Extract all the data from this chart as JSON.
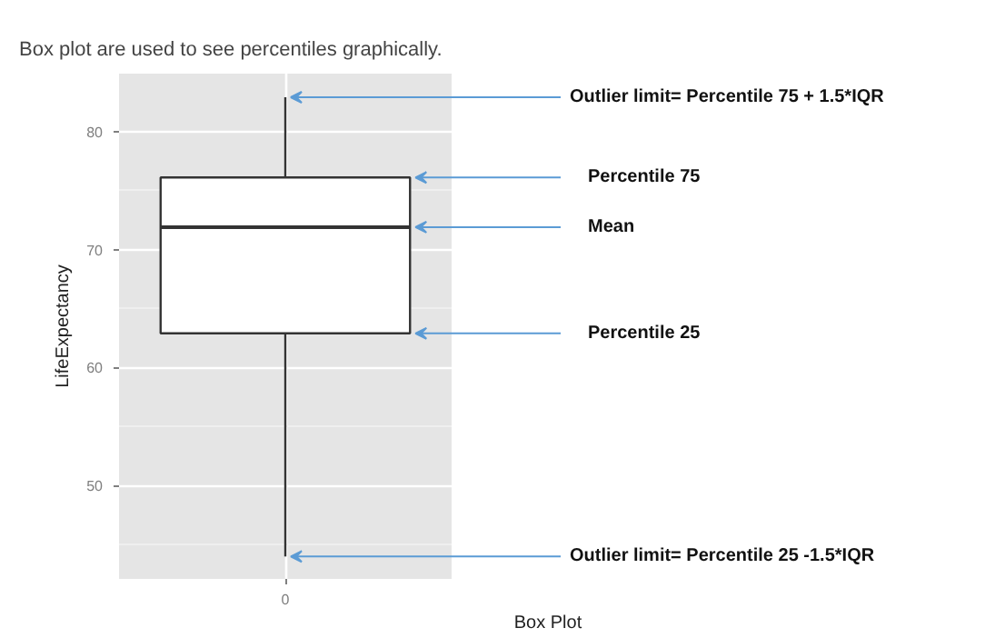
{
  "chart_data": {
    "type": "box",
    "title": "Box plot are used to see percentiles graphically.",
    "xlabel": "Box Plot",
    "ylabel": "LifeExpectancy",
    "categories": [
      "0"
    ],
    "boxes": [
      {
        "low": 44.0,
        "q1": 62.9,
        "median": 71.9,
        "q3": 76.1,
        "high": 82.9
      }
    ],
    "ylim": [
      42.1,
      84.9
    ],
    "yticks": [
      50,
      60,
      70,
      80
    ],
    "grid": true,
    "annotations": [
      {
        "text": "Outlier limit= Percentile 75 + 1.5*IQR",
        "x": "0",
        "y": 82.9
      },
      "Percentile 75",
      "Mean",
      "Percentile 25",
      {
        "text": "Outlier limit= Percentile 25 -1.5*IQR",
        "x": "0",
        "y": 44.0
      }
    ]
  }
}
